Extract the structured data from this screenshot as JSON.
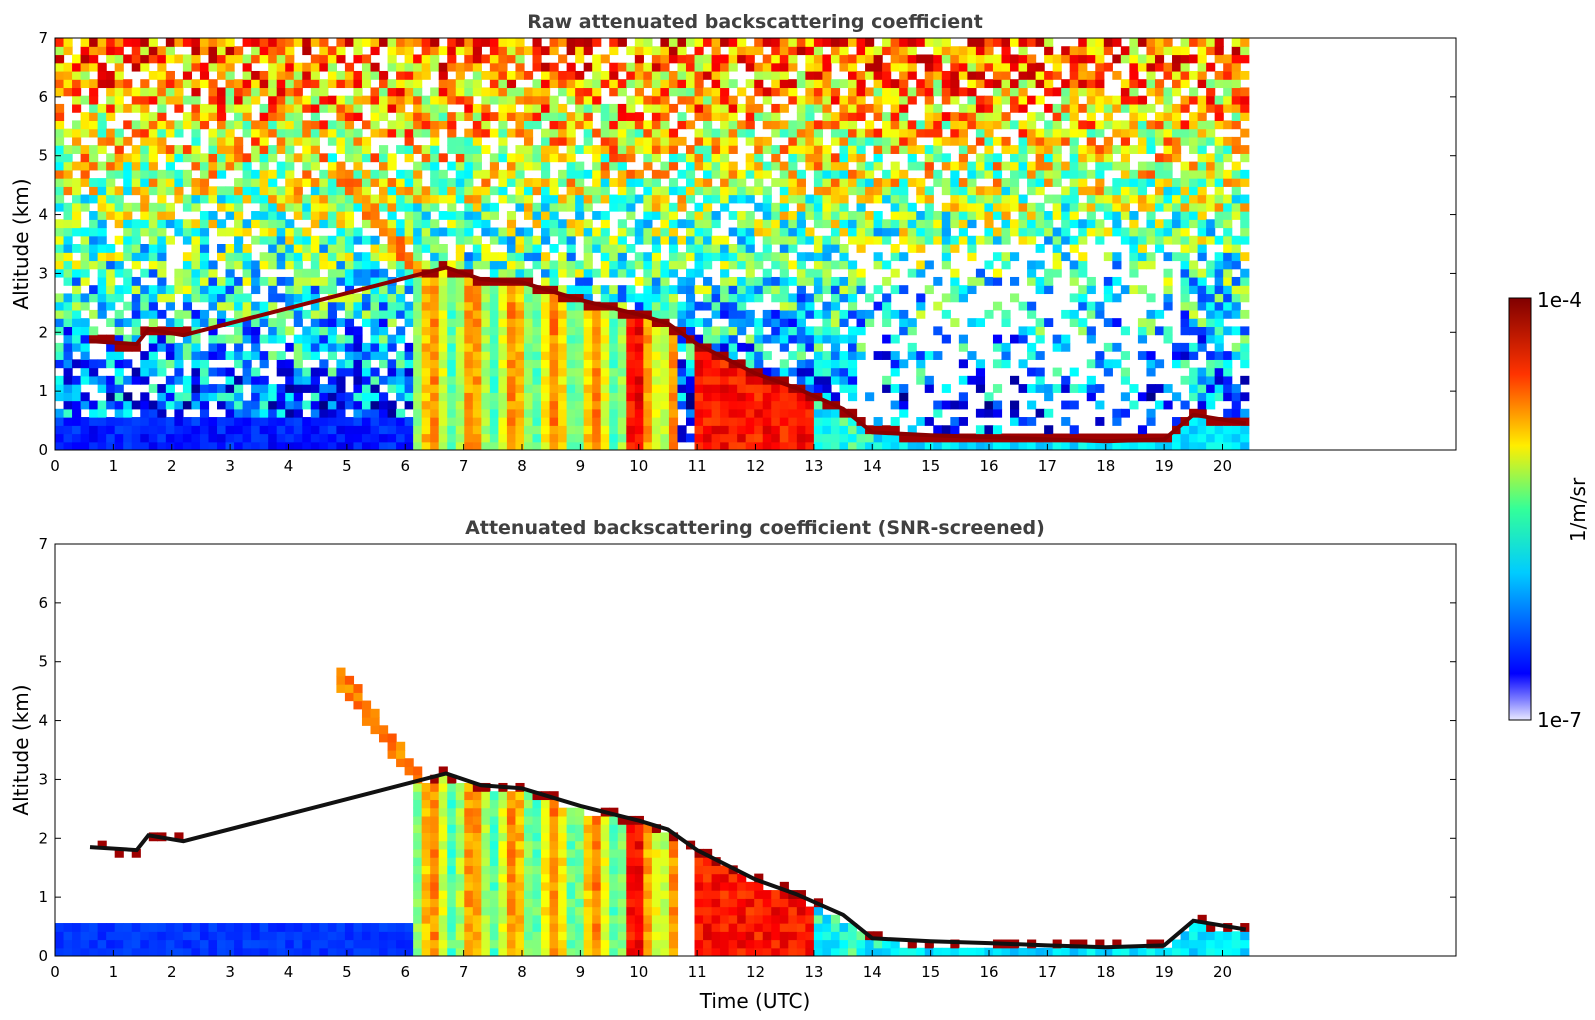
{
  "chart_data": [
    {
      "type": "heatmap",
      "title": "Raw attenuated backscattering coefficient",
      "xlabel": "",
      "ylabel": "Altitude (km)",
      "xlim": [
        0,
        24
      ],
      "ylim": [
        0,
        7
      ],
      "xticks": [
        0,
        1,
        2,
        3,
        4,
        5,
        6,
        7,
        8,
        9,
        10,
        11,
        12,
        13,
        14,
        15,
        16,
        17,
        18,
        19,
        20
      ],
      "yticks": [
        0,
        1,
        2,
        3,
        4,
        5,
        6,
        7
      ],
      "data_end_time": 20.45,
      "screened": false,
      "cloud_layer": [
        [
          0.6,
          1.85
        ],
        [
          1.4,
          1.8
        ],
        [
          1.6,
          2.05
        ],
        [
          2.2,
          1.95
        ],
        [
          6.7,
          3.1
        ],
        [
          7.3,
          2.9
        ],
        [
          8.0,
          2.85
        ],
        [
          9.0,
          2.55
        ],
        [
          10.0,
          2.3
        ],
        [
          10.5,
          2.15
        ],
        [
          11.0,
          1.8
        ],
        [
          12.0,
          1.3
        ],
        [
          12.7,
          1.05
        ],
        [
          13.5,
          0.7
        ],
        [
          14.0,
          0.3
        ],
        [
          15.0,
          0.25
        ],
        [
          16.0,
          0.22
        ],
        [
          17.0,
          0.18
        ],
        [
          18.0,
          0.15
        ],
        [
          19.0,
          0.18
        ],
        [
          19.5,
          0.6
        ],
        [
          20.4,
          0.45
        ]
      ]
    },
    {
      "type": "heatmap",
      "title": "Attenuated backscattering coefficient (SNR-screened)",
      "xlabel": "Time (UTC)",
      "ylabel": "Altitude (km)",
      "xlim": [
        0,
        24
      ],
      "ylim": [
        0,
        7
      ],
      "xticks": [
        0,
        1,
        2,
        3,
        4,
        5,
        6,
        7,
        8,
        9,
        10,
        11,
        12,
        13,
        14,
        15,
        16,
        17,
        18,
        19,
        20
      ],
      "yticks": [
        0,
        1,
        2,
        3,
        4,
        5,
        6,
        7
      ],
      "data_end_time": 20.45,
      "screened": true,
      "cloud_layer": [
        [
          0.6,
          1.85
        ],
        [
          1.4,
          1.8
        ],
        [
          1.6,
          2.05
        ],
        [
          2.2,
          1.95
        ],
        [
          6.7,
          3.1
        ],
        [
          7.3,
          2.9
        ],
        [
          8.0,
          2.85
        ],
        [
          9.0,
          2.55
        ],
        [
          10.0,
          2.3
        ],
        [
          10.5,
          2.15
        ],
        [
          11.0,
          1.8
        ],
        [
          12.0,
          1.3
        ],
        [
          12.7,
          1.05
        ],
        [
          13.5,
          0.7
        ],
        [
          14.0,
          0.3
        ],
        [
          15.0,
          0.25
        ],
        [
          16.0,
          0.22
        ],
        [
          17.0,
          0.18
        ],
        [
          18.0,
          0.15
        ],
        [
          19.0,
          0.18
        ],
        [
          19.5,
          0.6
        ],
        [
          20.4,
          0.45
        ]
      ]
    }
  ],
  "colorbar": {
    "label": "1/m/sr",
    "max_label": "1e-4",
    "min_label": "1e-7",
    "scale": "log",
    "colormap": "jet"
  }
}
